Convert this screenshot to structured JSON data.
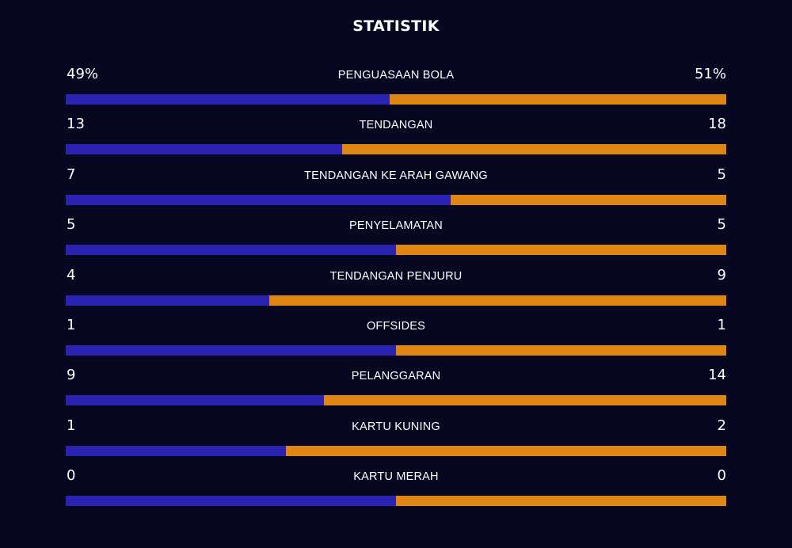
{
  "title": "STATISTIK",
  "colors": {
    "background": "#080722",
    "home_bar": "#2a23b2",
    "away_bar": "#e08614",
    "text": "#ffffff"
  },
  "stats": [
    {
      "label": "PENGUASAAN BOLA",
      "home": "49%",
      "away": "51%",
      "home_share": 0.49
    },
    {
      "label": "TENDANGAN",
      "home": "13",
      "away": "18",
      "home_share": 0.419
    },
    {
      "label": "TENDANGAN KE ARAH GAWANG",
      "home": "7",
      "away": "5",
      "home_share": 0.583
    },
    {
      "label": "PENYELAMATAN",
      "home": "5",
      "away": "5",
      "home_share": 0.5
    },
    {
      "label": "TENDANGAN PENJURU",
      "home": "4",
      "away": "9",
      "home_share": 0.308
    },
    {
      "label": "OFFSIDES",
      "home": "1",
      "away": "1",
      "home_share": 0.5
    },
    {
      "label": "PELANGGARAN",
      "home": "9",
      "away": "14",
      "home_share": 0.391
    },
    {
      "label": "KARTU KUNING",
      "home": "1",
      "away": "2",
      "home_share": 0.333
    },
    {
      "label": "KARTU MERAH",
      "home": "0",
      "away": "0",
      "home_share": 0.5
    }
  ]
}
